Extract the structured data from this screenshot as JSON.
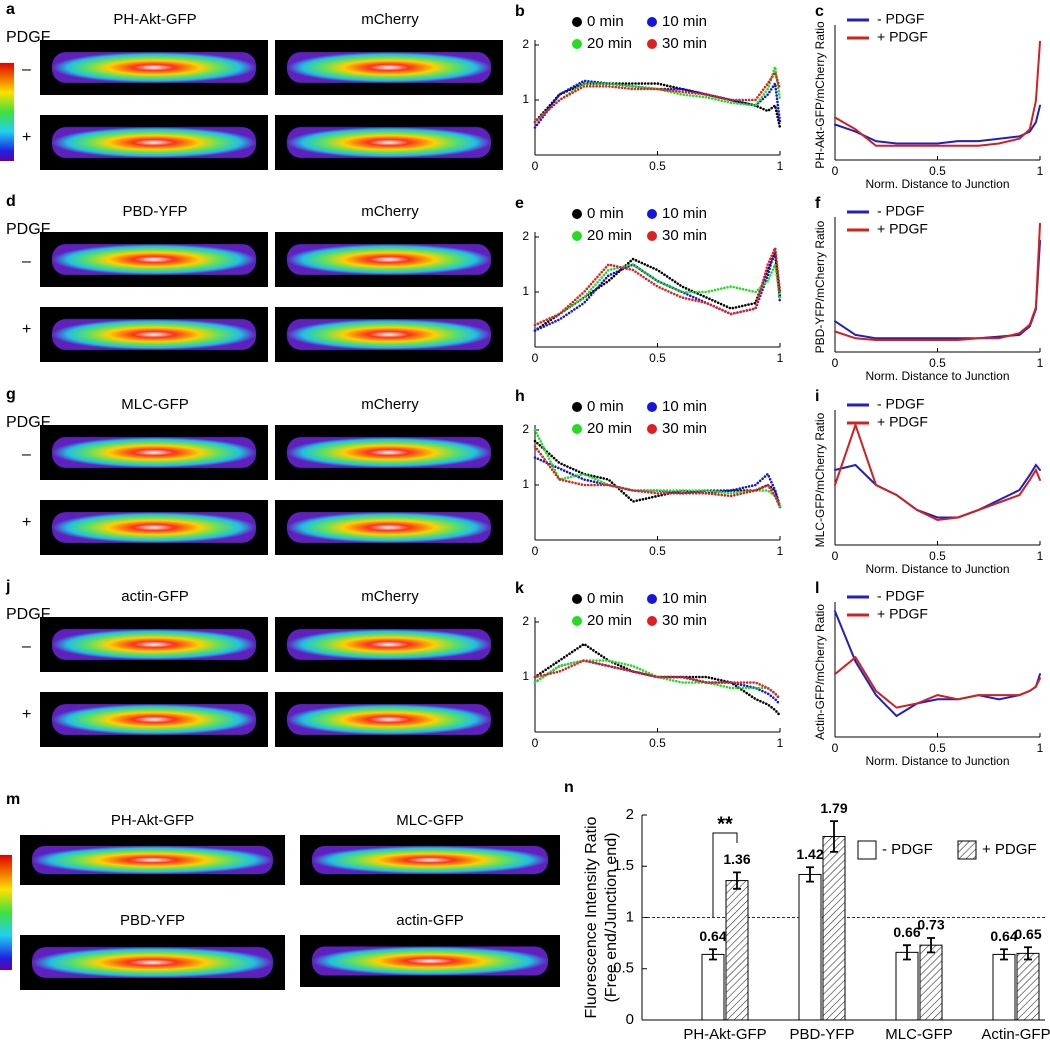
{
  "panels": [
    {
      "letter": "a",
      "condition": "PDGF",
      "minus": "–",
      "plus": "+",
      "images": [
        "PH-Akt-GFP",
        "mCherry"
      ]
    },
    {
      "letter": "d",
      "condition": "PDGF",
      "minus": "–",
      "plus": "+",
      "images": [
        "PBD-YFP",
        "mCherry"
      ]
    },
    {
      "letter": "g",
      "condition": "PDGF",
      "minus": "–",
      "plus": "+",
      "images": [
        "MLC-GFP",
        "mCherry"
      ]
    },
    {
      "letter": "j",
      "condition": "PDGF",
      "minus": "–",
      "plus": "+",
      "images": [
        "actin-GFP",
        "mCherry"
      ]
    },
    {
      "letter": "m",
      "images": [
        "PH-Akt-GFP",
        "MLC-GFP",
        "PBD-YFP",
        "actin-GFP"
      ]
    }
  ],
  "chart_data": [
    {
      "type": "line",
      "label": "b",
      "line_style": "dotted",
      "x": [
        0,
        0.1,
        0.2,
        0.3,
        0.4,
        0.5,
        0.6,
        0.7,
        0.8,
        0.9,
        0.95,
        0.98,
        1
      ],
      "xlim": [
        0,
        1
      ],
      "xticks": [
        0,
        0.5,
        1
      ],
      "ylim": [
        0,
        2
      ],
      "yticks": [
        1,
        2
      ],
      "series": [
        {
          "name": "0 min",
          "color": "#000000",
          "values": [
            0.6,
            1.1,
            1.3,
            1.3,
            1.3,
            1.3,
            1.2,
            1.1,
            1.0,
            0.9,
            0.8,
            0.9,
            0.5
          ]
        },
        {
          "name": "10 min",
          "color": "#1515e0",
          "values": [
            0.5,
            1.1,
            1.35,
            1.3,
            1.25,
            1.2,
            1.2,
            1.1,
            1.0,
            0.9,
            1.1,
            1.3,
            0.6
          ]
        },
        {
          "name": "20 min",
          "color": "#22dd22",
          "values": [
            0.6,
            1.0,
            1.3,
            1.3,
            1.25,
            1.2,
            1.1,
            1.05,
            0.95,
            0.9,
            1.2,
            1.6,
            1.0
          ]
        },
        {
          "name": "30 min",
          "color": "#e02020",
          "values": [
            0.6,
            1.0,
            1.25,
            1.25,
            1.2,
            1.2,
            1.15,
            1.1,
            1.0,
            1.0,
            1.3,
            1.5,
            1.2
          ]
        }
      ]
    },
    {
      "type": "line",
      "label": "c",
      "line_style": "solid",
      "x": [
        0,
        0.1,
        0.2,
        0.3,
        0.4,
        0.5,
        0.6,
        0.7,
        0.8,
        0.9,
        0.95,
        0.98,
        1
      ],
      "xlim": [
        0,
        1
      ],
      "xticks": [
        0,
        0.5,
        1
      ],
      "ylim": [
        0,
        5.5
      ],
      "xlabel": "Norm. Distance to Junction",
      "ylabel": "PH-Akt-GFP/mCherry Ratio",
      "series": [
        {
          "name": "- PDGF",
          "color": "#2020c0",
          "values": [
            1.5,
            1.2,
            0.8,
            0.7,
            0.7,
            0.7,
            0.8,
            0.8,
            0.9,
            1.0,
            1.2,
            1.6,
            2.3
          ]
        },
        {
          "name": "+ PDGF",
          "color": "#d02020",
          "values": [
            1.8,
            1.3,
            0.6,
            0.6,
            0.6,
            0.6,
            0.6,
            0.6,
            0.7,
            0.9,
            1.3,
            2.5,
            5.0
          ]
        }
      ]
    },
    {
      "type": "line",
      "label": "e",
      "line_style": "dotted",
      "x": [
        0,
        0.1,
        0.2,
        0.3,
        0.4,
        0.5,
        0.6,
        0.7,
        0.8,
        0.9,
        0.95,
        0.98,
        1
      ],
      "xlim": [
        0,
        1
      ],
      "xticks": [
        0,
        0.5,
        1
      ],
      "ylim": [
        0,
        2
      ],
      "yticks": [
        1,
        2
      ],
      "series": [
        {
          "name": "0 min",
          "color": "#000000",
          "values": [
            0.3,
            0.6,
            0.9,
            1.2,
            1.6,
            1.4,
            1.1,
            0.9,
            0.7,
            0.8,
            1.4,
            1.7,
            0.9
          ]
        },
        {
          "name": "10 min",
          "color": "#1515e0",
          "values": [
            0.3,
            0.5,
            0.8,
            1.3,
            1.5,
            1.2,
            1.0,
            0.8,
            0.6,
            0.7,
            1.3,
            1.8,
            0.8
          ]
        },
        {
          "name": "20 min",
          "color": "#22dd22",
          "values": [
            0.4,
            0.6,
            0.9,
            1.4,
            1.5,
            1.2,
            1.0,
            1.0,
            1.1,
            1.0,
            1.2,
            1.5,
            0.9
          ]
        },
        {
          "name": "30 min",
          "color": "#e02020",
          "values": [
            0.4,
            0.6,
            1.0,
            1.5,
            1.4,
            1.1,
            0.9,
            0.8,
            0.6,
            0.7,
            1.5,
            1.8,
            1.0
          ]
        }
      ]
    },
    {
      "type": "line",
      "label": "f",
      "line_style": "solid",
      "x": [
        0,
        0.1,
        0.2,
        0.3,
        0.4,
        0.5,
        0.6,
        0.7,
        0.8,
        0.9,
        0.95,
        0.98,
        1
      ],
      "xlim": [
        0,
        1
      ],
      "xticks": [
        0,
        0.5,
        1
      ],
      "ylim": [
        0,
        7.6
      ],
      "xlabel": "Norm. Distance to Junction",
      "ylabel": "PBD-YFP/mCherry Ratio",
      "series": [
        {
          "name": "- PDGF",
          "color": "#2020c0",
          "values": [
            1.8,
            1.0,
            0.8,
            0.8,
            0.8,
            0.8,
            0.8,
            0.8,
            0.9,
            1.0,
            1.5,
            2.5,
            6.5
          ]
        },
        {
          "name": "+ PDGF",
          "color": "#d02020",
          "values": [
            1.2,
            0.8,
            0.7,
            0.7,
            0.7,
            0.7,
            0.7,
            0.8,
            0.8,
            1.1,
            1.6,
            2.6,
            7.5
          ]
        }
      ]
    },
    {
      "type": "line",
      "label": "h",
      "line_style": "dotted",
      "x": [
        0,
        0.1,
        0.2,
        0.3,
        0.4,
        0.5,
        0.6,
        0.7,
        0.8,
        0.9,
        0.95,
        0.98,
        1
      ],
      "xlim": [
        0,
        1
      ],
      "xticks": [
        0,
        0.5,
        1
      ],
      "ylim": [
        0,
        2
      ],
      "yticks": [
        1,
        2
      ],
      "series": [
        {
          "name": "0 min",
          "color": "#000000",
          "values": [
            1.8,
            1.4,
            1.2,
            1.1,
            0.7,
            0.8,
            0.9,
            0.85,
            0.9,
            0.9,
            1.0,
            0.9,
            0.6
          ]
        },
        {
          "name": "10 min",
          "color": "#1515e0",
          "values": [
            1.5,
            1.3,
            1.1,
            1.0,
            0.9,
            0.9,
            0.85,
            0.9,
            0.9,
            1.0,
            1.2,
            0.9,
            0.6
          ]
        },
        {
          "name": "20 min",
          "color": "#22dd22",
          "values": [
            2.0,
            1.1,
            1.2,
            1.0,
            0.9,
            0.9,
            0.9,
            0.9,
            0.85,
            0.9,
            0.9,
            0.8,
            0.6
          ]
        },
        {
          "name": "30 min",
          "color": "#e02020",
          "values": [
            1.7,
            1.1,
            1.0,
            1.0,
            0.9,
            0.85,
            0.85,
            0.85,
            0.8,
            0.9,
            1.0,
            0.8,
            0.6
          ]
        }
      ]
    },
    {
      "type": "line",
      "label": "i",
      "line_style": "solid",
      "x": [
        0,
        0.1,
        0.2,
        0.3,
        0.4,
        0.5,
        0.6,
        0.7,
        0.8,
        0.9,
        0.95,
        0.98,
        1
      ],
      "xlim": [
        0,
        1
      ],
      "xticks": [
        0,
        0.5,
        1
      ],
      "ylim": [
        0,
        2.6
      ],
      "xlabel": "Norm. Distance to Junction",
      "ylabel": "MLC-GFP/mCherry Ratio",
      "series": [
        {
          "name": "- PDGF",
          "color": "#2020c0",
          "values": [
            1.5,
            1.6,
            1.2,
            1.0,
            0.7,
            0.55,
            0.55,
            0.7,
            0.9,
            1.1,
            1.4,
            1.6,
            1.5
          ]
        },
        {
          "name": "+ PDGF",
          "color": "#d02020",
          "values": [
            1.2,
            2.4,
            1.2,
            1.0,
            0.7,
            0.5,
            0.55,
            0.7,
            0.85,
            1.0,
            1.3,
            1.5,
            1.3
          ]
        }
      ]
    },
    {
      "type": "line",
      "label": "k",
      "line_style": "dotted",
      "x": [
        0,
        0.1,
        0.2,
        0.3,
        0.4,
        0.5,
        0.6,
        0.7,
        0.8,
        0.9,
        0.95,
        0.98,
        1
      ],
      "xlim": [
        0,
        1
      ],
      "xticks": [
        0,
        0.5,
        1
      ],
      "ylim": [
        0,
        2
      ],
      "yticks": [
        1,
        2
      ],
      "series": [
        {
          "name": "0 min",
          "color": "#000000",
          "values": [
            1.0,
            1.3,
            1.6,
            1.3,
            1.1,
            1.0,
            1.0,
            1.0,
            0.9,
            0.6,
            0.5,
            0.4,
            0.3
          ]
        },
        {
          "name": "10 min",
          "color": "#1515e0",
          "values": [
            0.9,
            1.2,
            1.3,
            1.2,
            1.1,
            1.0,
            1.0,
            0.9,
            0.9,
            0.8,
            0.7,
            0.6,
            0.5
          ]
        },
        {
          "name": "20 min",
          "color": "#22dd22",
          "values": [
            0.9,
            1.2,
            1.3,
            1.3,
            1.2,
            1.0,
            0.9,
            0.9,
            0.8,
            0.8,
            0.8,
            0.7,
            0.6
          ]
        },
        {
          "name": "30 min",
          "color": "#e02020",
          "values": [
            1.0,
            1.1,
            1.3,
            1.2,
            1.1,
            1.0,
            1.0,
            0.9,
            0.9,
            0.9,
            0.8,
            0.7,
            0.6
          ]
        }
      ]
    },
    {
      "type": "line",
      "label": "l",
      "line_style": "solid",
      "x": [
        0,
        0.1,
        0.2,
        0.3,
        0.4,
        0.5,
        0.6,
        0.7,
        0.8,
        0.9,
        0.95,
        0.98,
        1
      ],
      "xlim": [
        0,
        1
      ],
      "xticks": [
        0,
        0.5,
        1
      ],
      "ylim": [
        0,
        3.1
      ],
      "xlabel": "Norm. Distance to Junction",
      "ylabel": "Actin-GFP/mCherry Ratio",
      "series": [
        {
          "name": "- PDGF",
          "color": "#2020c0",
          "values": [
            3.0,
            1.8,
            1.0,
            0.5,
            0.8,
            0.9,
            0.9,
            1.0,
            0.9,
            1.0,
            1.1,
            1.2,
            1.5
          ]
        },
        {
          "name": "+ PDGF",
          "color": "#d02020",
          "values": [
            1.5,
            1.9,
            1.1,
            0.7,
            0.8,
            1.0,
            0.9,
            1.0,
            1.0,
            1.0,
            1.1,
            1.2,
            1.4
          ]
        }
      ]
    },
    {
      "type": "bar",
      "label": "n",
      "ylabel": [
        "Fluorescence Intensity Ratio",
        "(Free end/Junction end)"
      ],
      "categories": [
        "PH-Akt-GFP",
        "PBD-YFP",
        "MLC-GFP",
        "Actin-GFP"
      ],
      "ylim": [
        0,
        2
      ],
      "yticks": [
        0,
        0.5,
        1,
        1.5,
        2
      ],
      "reference_line": 1,
      "annotation": "**",
      "series": [
        {
          "name": "- PDGF",
          "color": "#ffffff",
          "hatch": false,
          "values": [
            0.64,
            1.42,
            0.66,
            0.64
          ],
          "errors": [
            0.05,
            0.07,
            0.07,
            0.05
          ]
        },
        {
          "name": "+ PDGF",
          "color": "#ffffff",
          "hatch": true,
          "values": [
            1.36,
            1.79,
            0.73,
            0.65
          ],
          "errors": [
            0.08,
            0.15,
            0.07,
            0.06
          ]
        }
      ]
    }
  ]
}
